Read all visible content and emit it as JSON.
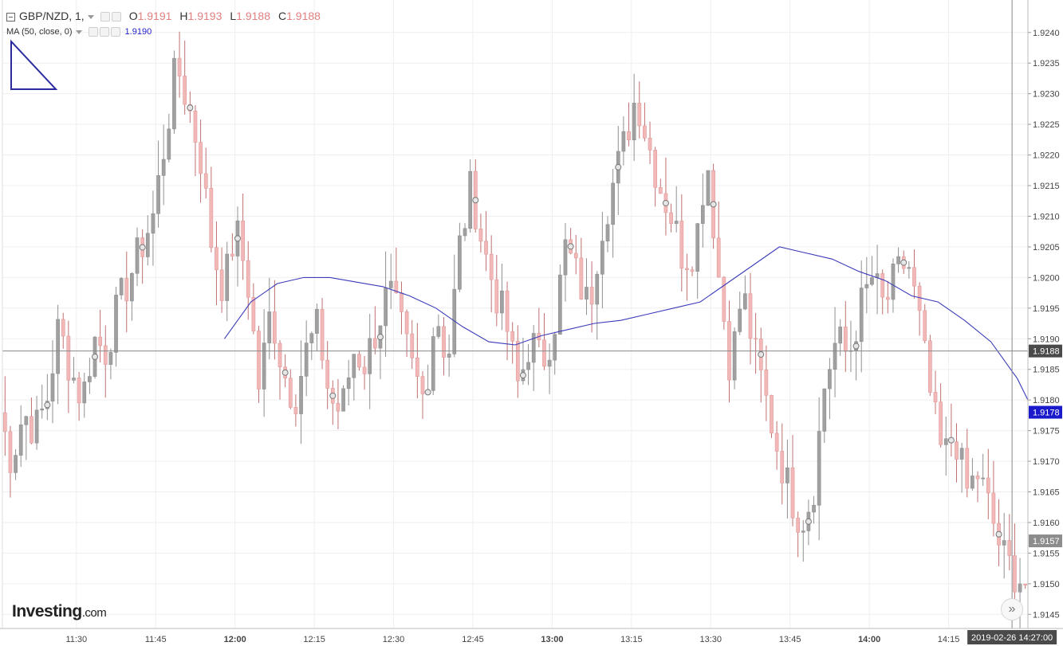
{
  "header": {
    "symbol": "GBP/NZD, 1,",
    "o_label": "O",
    "o_value": "1.9191",
    "h_label": "H",
    "h_value": "1.9193",
    "l_label": "L",
    "l_value": "1.9188",
    "c_label": "C",
    "c_value": "1.9188",
    "ma_label": "MA (50, close, 0)",
    "ma_value": "1.9190"
  },
  "logo": {
    "main": "Investing",
    "suffix": ".com"
  },
  "nav_button": "»",
  "crosshair": {
    "time_label": "2019-02-26 14:27:00",
    "price_label": "1.9188",
    "price": 1.9188
  },
  "colors": {
    "up": "#a0a0a0",
    "down": "#f2b8b8",
    "ma": "#3b3bbb",
    "ma_badge": "#1a1acc",
    "last_badge": "#8c8c8c"
  },
  "chart_data": {
    "type": "candlestick",
    "symbol": "GBP/NZD",
    "interval": "1",
    "x_axis": {
      "ticks": [
        {
          "label": "11:30",
          "bold": false
        },
        {
          "label": "11:45",
          "bold": false
        },
        {
          "label": "12:00",
          "bold": true
        },
        {
          "label": "12:15",
          "bold": false
        },
        {
          "label": "12:30",
          "bold": false
        },
        {
          "label": "12:45",
          "bold": false
        },
        {
          "label": "13:00",
          "bold": true
        },
        {
          "label": "13:15",
          "bold": false
        },
        {
          "label": "13:30",
          "bold": false
        },
        {
          "label": "13:45",
          "bold": false
        },
        {
          "label": "14:00",
          "bold": true
        },
        {
          "label": "14:15",
          "bold": false
        },
        {
          "label": "14:",
          "bold": false
        }
      ],
      "start": "11:16",
      "end": "14:30"
    },
    "y_axis": {
      "ticks": [
        "1.9145",
        "1.9150",
        "1.9155",
        "1.9160",
        "1.9165",
        "1.9170",
        "1.9175",
        "1.9180",
        "1.9185",
        "1.9190",
        "1.9195",
        "1.9200",
        "1.9205",
        "1.9210",
        "1.9215",
        "1.9220",
        "1.9225",
        "1.9230",
        "1.9235",
        "1.9240"
      ],
      "range": [
        1.91427,
        1.92453
      ]
    },
    "price_badges": [
      {
        "label": "1.9178",
        "kind": "ma",
        "price": 1.9178
      },
      {
        "label": "1.9157",
        "kind": "last",
        "price": 1.9157
      }
    ],
    "close_path": [
      1.9178,
      1.917,
      1.9178,
      1.9175,
      1.918,
      1.9192,
      1.9185,
      1.918,
      1.919,
      1.9188,
      1.9195,
      1.92,
      1.9205,
      1.921,
      1.9222,
      1.9235,
      1.9228,
      1.922,
      1.9205,
      1.9198,
      1.9208,
      1.92,
      1.9182,
      1.9195,
      1.9185,
      1.918,
      1.9188,
      1.9192,
      1.918,
      1.9178,
      1.9188,
      1.9186,
      1.9192,
      1.9198,
      1.9192,
      1.9185,
      1.918,
      1.9195,
      1.9186,
      1.9205,
      1.9215,
      1.9205,
      1.9198,
      1.9192,
      1.9182,
      1.919,
      1.9186,
      1.9192,
      1.9205,
      1.92,
      1.9195,
      1.9208,
      1.9215,
      1.9222,
      1.923,
      1.9222,
      1.9215,
      1.921,
      1.9203,
      1.9205,
      1.922,
      1.92,
      1.9185,
      1.9198,
      1.9188,
      1.918,
      1.9172,
      1.9165,
      1.916,
      1.9165,
      1.9183,
      1.919,
      1.9187,
      1.9195,
      1.92,
      1.9195,
      1.92,
      1.9203,
      1.9193,
      1.918,
      1.917,
      1.9175,
      1.9165,
      1.9168,
      1.9162,
      1.9155,
      1.9152,
      1.915
    ],
    "ma": {
      "label": "MA (50, close, 0)",
      "points": [
        [
          "11:58",
          1.919
        ],
        [
          "12:03",
          1.9196
        ],
        [
          "12:08",
          1.9199
        ],
        [
          "12:13",
          1.92
        ],
        [
          "12:18",
          1.92
        ],
        [
          "12:28",
          1.91985
        ],
        [
          "12:33",
          1.9197
        ],
        [
          "12:38",
          1.9195
        ],
        [
          "12:43",
          1.9192
        ],
        [
          "12:48",
          1.91895
        ],
        [
          "12:53",
          1.9189
        ],
        [
          "12:58",
          1.91905
        ],
        [
          "13:03",
          1.91915
        ],
        [
          "13:08",
          1.91925
        ],
        [
          "13:13",
          1.9193
        ],
        [
          "13:18",
          1.9194
        ],
        [
          "13:23",
          1.9195
        ],
        [
          "13:28",
          1.9196
        ],
        [
          "13:33",
          1.9199
        ],
        [
          "13:38",
          1.9202
        ],
        [
          "13:43",
          1.9205
        ],
        [
          "13:48",
          1.9204
        ],
        [
          "13:53",
          1.9203
        ],
        [
          "13:58",
          1.9201
        ],
        [
          "14:03",
          1.91995
        ],
        [
          "14:08",
          1.9197
        ],
        [
          "14:13",
          1.9196
        ],
        [
          "14:18",
          1.9193
        ],
        [
          "14:23",
          1.91895
        ],
        [
          "14:28",
          1.91835
        ],
        [
          "14:30",
          1.918
        ]
      ]
    }
  }
}
